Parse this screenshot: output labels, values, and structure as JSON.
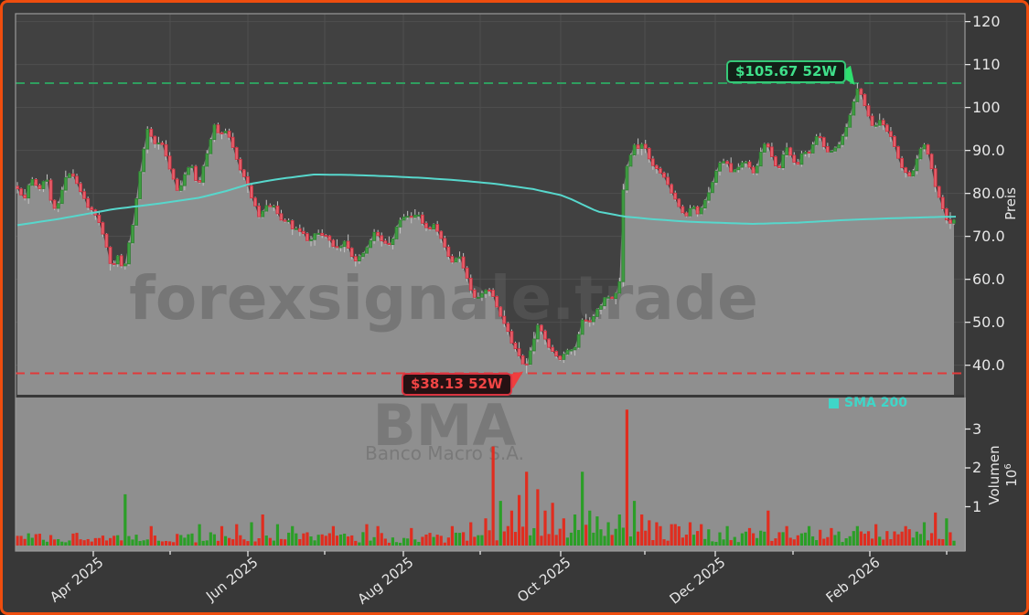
{
  "watermarks": {
    "main": "forexsignale.trade",
    "symbol": "BMA",
    "symbol_sub": "Banco Macro S.A."
  },
  "chart_data": {
    "type": "candlestick",
    "ylabel_price": "Preis",
    "ylabel_volume": "Volumen",
    "volume_scale_base": "10",
    "volume_scale_exp": "6",
    "legend": {
      "sma_label": "SMA 200"
    },
    "annotations": {
      "high": {
        "text": "$105.67 52W",
        "value": 105.67
      },
      "low": {
        "text": "$38.13 52W",
        "value": 38.13
      }
    },
    "price_ticks": {
      "labels": [
        "120",
        "110",
        "100",
        "90.0",
        "80.0",
        "70.0",
        "60.0",
        "50.0",
        "40.0"
      ],
      "values": [
        120,
        110,
        100,
        90,
        80,
        70,
        60,
        50,
        40
      ]
    },
    "volume_ticks": {
      "labels": [
        "3",
        "2",
        "1"
      ],
      "values": [
        3,
        2,
        1
      ]
    },
    "x_ticks": [
      {
        "x": 99,
        "label": "Apr 2025"
      },
      {
        "x": 183,
        "label": ""
      },
      {
        "x": 268,
        "label": "Jun 2025"
      },
      {
        "x": 352,
        "label": ""
      },
      {
        "x": 438,
        "label": "Aug 2025"
      },
      {
        "x": 522,
        "label": ""
      },
      {
        "x": 610,
        "label": "Oct 2025"
      },
      {
        "x": 702,
        "label": ""
      },
      {
        "x": 779,
        "label": "Dec 2025"
      },
      {
        "x": 864,
        "label": ""
      },
      {
        "x": 948,
        "label": "Feb 2026"
      },
      {
        "x": 1032,
        "label": ""
      }
    ],
    "y_range": [
      40,
      120
    ],
    "series": {
      "close_anchors": [
        [
          16,
          81
        ],
        [
          20,
          79.5
        ],
        [
          24,
          79
        ],
        [
          28,
          82
        ],
        [
          33,
          83.5
        ],
        [
          38,
          80.5
        ],
        [
          43,
          82.5
        ],
        [
          48,
          83.5
        ],
        [
          53,
          78
        ],
        [
          58,
          76.5
        ],
        [
          63,
          79
        ],
        [
          70,
          85
        ],
        [
          76,
          84.5
        ],
        [
          82,
          82
        ],
        [
          88,
          79
        ],
        [
          95,
          76.5
        ],
        [
          101,
          75
        ],
        [
          106,
          73
        ],
        [
          110,
          70.5
        ],
        [
          115,
          66
        ],
        [
          119,
          62.5
        ],
        [
          123,
          64
        ],
        [
          127,
          66.5
        ],
        [
          131,
          61.5
        ],
        [
          135,
          64
        ],
        [
          139,
          70
        ],
        [
          143,
          74
        ],
        [
          147,
          80
        ],
        [
          151,
          87
        ],
        [
          155,
          91
        ],
        [
          158,
          95
        ],
        [
          161,
          94
        ],
        [
          165,
          92
        ],
        [
          169,
          91
        ],
        [
          173,
          93
        ],
        [
          177,
          89.5
        ],
        [
          181,
          87
        ],
        [
          186,
          84
        ],
        [
          191,
          80.8
        ],
        [
          196,
          82.5
        ],
        [
          201,
          85.5
        ],
        [
          206,
          87
        ],
        [
          210,
          84
        ],
        [
          214,
          81.5
        ],
        [
          219,
          86
        ],
        [
          224,
          90
        ],
        [
          228,
          93.5
        ],
        [
          232,
          96.3
        ],
        [
          236,
          94
        ],
        [
          241,
          93.8
        ],
        [
          245,
          94.6
        ],
        [
          250,
          91.5
        ],
        [
          255,
          88
        ],
        [
          260,
          85
        ],
        [
          265,
          83.5
        ],
        [
          269,
          81
        ],
        [
          274,
          78
        ],
        [
          280,
          74.5
        ],
        [
          285,
          76.2
        ],
        [
          290,
          77.4
        ],
        [
          296,
          76.8
        ],
        [
          301,
          75.2
        ],
        [
          306,
          73.6
        ],
        [
          311,
          74
        ],
        [
          316,
          71.8
        ],
        [
          321,
          72.2
        ],
        [
          326,
          71
        ],
        [
          331,
          69.8
        ],
        [
          336,
          68.7
        ],
        [
          341,
          70.3
        ],
        [
          346,
          71
        ],
        [
          351,
          70.4
        ],
        [
          356,
          69.3
        ],
        [
          361,
          67.4
        ],
        [
          366,
          67
        ],
        [
          371,
          68.2
        ],
        [
          375,
          68.6
        ],
        [
          379,
          66.8
        ],
        [
          383,
          64.6
        ],
        [
          387,
          64.2
        ],
        [
          391,
          65.6
        ],
        [
          396,
          66.8
        ],
        [
          401,
          69
        ],
        [
          406,
          70.6
        ],
        [
          410,
          70
        ],
        [
          415,
          68.7
        ],
        [
          420,
          67.8
        ],
        [
          425,
          69
        ],
        [
          430,
          71.8
        ],
        [
          435,
          73.6
        ],
        [
          440,
          74.8
        ],
        [
          445,
          74.2
        ],
        [
          450,
          74.6
        ],
        [
          454,
          75.2
        ],
        [
          458,
          73.6
        ],
        [
          463,
          72.4
        ],
        [
          467,
          71.6
        ],
        [
          471,
          72.6
        ],
        [
          475,
          71
        ],
        [
          479,
          69.3
        ],
        [
          483,
          67.5
        ],
        [
          487,
          65.2
        ],
        [
          491,
          64
        ],
        [
          495,
          65
        ],
        [
          499,
          65.8
        ],
        [
          503,
          63.5
        ],
        [
          507,
          60.5
        ],
        [
          511,
          57.8
        ],
        [
          515,
          56.2
        ],
        [
          519,
          55.6
        ],
        [
          523,
          56.8
        ],
        [
          527,
          57.6
        ],
        [
          531,
          58
        ],
        [
          535,
          56.8
        ],
        [
          539,
          54.6
        ],
        [
          543,
          52.4
        ],
        [
          547,
          50.4
        ],
        [
          551,
          48.4
        ],
        [
          555,
          46.2
        ],
        [
          559,
          44.2
        ],
        [
          563,
          43
        ],
        [
          567,
          40.8
        ],
        [
          571,
          39.2
        ],
        [
          574,
          41
        ],
        [
          577,
          43.6
        ],
        [
          580,
          45.8
        ],
        [
          583,
          47.8
        ],
        [
          586,
          50.2
        ],
        [
          589,
          48.2
        ],
        [
          592,
          46.4
        ],
        [
          596,
          44.8
        ],
        [
          600,
          43.4
        ],
        [
          604,
          42.6
        ],
        [
          608,
          41.8
        ],
        [
          612,
          41.6
        ],
        [
          616,
          43.8
        ],
        [
          620,
          43.4
        ],
        [
          624,
          44.2
        ],
        [
          628,
          45
        ],
        [
          632,
          50
        ],
        [
          636,
          50.8
        ],
        [
          640,
          49.4
        ],
        [
          644,
          50.6
        ],
        [
          648,
          52.2
        ],
        [
          652,
          53.4
        ],
        [
          656,
          54.8
        ],
        [
          660,
          56.6
        ],
        [
          664,
          55.8
        ],
        [
          668,
          55.4
        ],
        [
          672,
          57.5
        ],
        [
          675,
          60
        ],
        [
          678,
          80
        ],
        [
          681,
          85
        ],
        [
          684,
          87
        ],
        [
          688,
          89.5
        ],
        [
          691,
          91.5
        ],
        [
          694,
          90.6
        ],
        [
          697,
          90
        ],
        [
          700,
          92.5
        ],
        [
          703,
          90
        ],
        [
          706,
          87.8
        ],
        [
          710,
          87
        ],
        [
          714,
          86
        ],
        [
          718,
          85.2
        ],
        [
          722,
          84.4
        ],
        [
          726,
          82.8
        ],
        [
          730,
          80.8
        ],
        [
          734,
          79.4
        ],
        [
          738,
          77.8
        ],
        [
          742,
          76
        ],
        [
          746,
          74.6
        ],
        [
          750,
          76
        ],
        [
          753,
          77.6
        ],
        [
          756,
          76.4
        ],
        [
          759,
          75
        ],
        [
          762,
          75.6
        ],
        [
          766,
          77.5
        ],
        [
          770,
          79.5
        ],
        [
          774,
          81.8
        ],
        [
          778,
          84
        ],
        [
          782,
          86
        ],
        [
          786,
          87.4
        ],
        [
          790,
          87.8
        ],
        [
          794,
          85.8
        ],
        [
          798,
          85
        ],
        [
          802,
          85.8
        ],
        [
          806,
          86.6
        ],
        [
          810,
          87.8
        ],
        [
          814,
          87
        ],
        [
          818,
          85.4
        ],
        [
          822,
          85
        ],
        [
          826,
          87.6
        ],
        [
          830,
          90
        ],
        [
          834,
          92.6
        ],
        [
          837,
          91
        ],
        [
          841,
          88.4
        ],
        [
          845,
          86.4
        ],
        [
          849,
          86.2
        ],
        [
          853,
          88.6
        ],
        [
          857,
          90.4
        ],
        [
          860,
          89.6
        ],
        [
          864,
          87.6
        ],
        [
          868,
          86.2
        ],
        [
          872,
          88.8
        ],
        [
          876,
          90.2
        ],
        [
          879,
          88.6
        ],
        [
          883,
          90.2
        ],
        [
          887,
          92.4
        ],
        [
          891,
          94
        ],
        [
          895,
          92.2
        ],
        [
          899,
          90.4
        ],
        [
          903,
          89
        ],
        [
          907,
          90
        ],
        [
          911,
          90.8
        ],
        [
          915,
          91.8
        ],
        [
          919,
          93.8
        ],
        [
          923,
          96
        ],
        [
          927,
          99
        ],
        [
          931,
          102
        ],
        [
          934,
          104.2
        ],
        [
          937,
          103.6
        ],
        [
          940,
          102
        ],
        [
          944,
          99.8
        ],
        [
          948,
          97.4
        ],
        [
          952,
          95.2
        ],
        [
          956,
          96.2
        ],
        [
          960,
          97
        ],
        [
          964,
          96
        ],
        [
          968,
          94.2
        ],
        [
          972,
          92.4
        ],
        [
          976,
          90
        ],
        [
          980,
          87.4
        ],
        [
          984,
          85.6
        ],
        [
          988,
          84.4
        ],
        [
          992,
          83.6
        ],
        [
          996,
          86
        ],
        [
          1000,
          88.6
        ],
        [
          1004,
          90.4
        ],
        [
          1007,
          91.4
        ],
        [
          1011,
          89.8
        ],
        [
          1015,
          86.5
        ],
        [
          1019,
          82.5
        ],
        [
          1023,
          79.5
        ],
        [
          1027,
          76.5
        ],
        [
          1031,
          74.5
        ],
        [
          1035,
          73.2
        ],
        [
          1040,
          73.6
        ]
      ],
      "sma200_anchors": [
        [
          16,
          72.6
        ],
        [
          60,
          74
        ],
        [
          120,
          76.3
        ],
        [
          170,
          77.6
        ],
        [
          215,
          79
        ],
        [
          245,
          80.6
        ],
        [
          270,
          82.2
        ],
        [
          300,
          83.3
        ],
        [
          340,
          84.4
        ],
        [
          380,
          84.3
        ],
        [
          420,
          84.0
        ],
        [
          460,
          83.6
        ],
        [
          500,
          83.0
        ],
        [
          540,
          82.2
        ],
        [
          580,
          81.0
        ],
        [
          610,
          79.6
        ],
        [
          620,
          78.8
        ],
        [
          650,
          75.8
        ],
        [
          680,
          74.6
        ],
        [
          710,
          74.0
        ],
        [
          750,
          73.4
        ],
        [
          820,
          72.9
        ],
        [
          870,
          73.2
        ],
        [
          920,
          73.8
        ],
        [
          970,
          74.2
        ],
        [
          1020,
          74.5
        ],
        [
          1045,
          74.6
        ]
      ],
      "volume_spikes_millions": [
        [
          29,
          1.32,
          "g"
        ],
        [
          36,
          0.5,
          "r"
        ],
        [
          49,
          0.55,
          "g"
        ],
        [
          55,
          0.5,
          "r"
        ],
        [
          59,
          0.55,
          "r"
        ],
        [
          63,
          0.6,
          "g"
        ],
        [
          66,
          0.8,
          "r"
        ],
        [
          70,
          0.55,
          "g"
        ],
        [
          74,
          0.5,
          "g"
        ],
        [
          85,
          0.5,
          "r"
        ],
        [
          94,
          0.55,
          "r"
        ],
        [
          97,
          0.5,
          "r"
        ],
        [
          106,
          0.45,
          "r"
        ],
        [
          117,
          0.5,
          "r"
        ],
        [
          122,
          0.6,
          "r"
        ],
        [
          126,
          0.7,
          "r"
        ],
        [
          128,
          2.55,
          "r"
        ],
        [
          130,
          1.15,
          "g"
        ],
        [
          133,
          0.9,
          "r"
        ],
        [
          135,
          1.3,
          "r"
        ],
        [
          137,
          1.9,
          "r"
        ],
        [
          140,
          1.45,
          "r"
        ],
        [
          142,
          0.9,
          "r"
        ],
        [
          144,
          1.1,
          "r"
        ],
        [
          147,
          0.7,
          "r"
        ],
        [
          150,
          0.8,
          "g"
        ],
        [
          152,
          1.9,
          "g"
        ],
        [
          154,
          0.9,
          "g"
        ],
        [
          156,
          0.75,
          "g"
        ],
        [
          159,
          0.6,
          "g"
        ],
        [
          162,
          0.8,
          "g"
        ],
        [
          164,
          3.5,
          "r"
        ],
        [
          166,
          1.15,
          "g"
        ],
        [
          168,
          0.8,
          "r"
        ],
        [
          170,
          0.65,
          "r"
        ],
        [
          172,
          0.6,
          "r"
        ],
        [
          176,
          0.55,
          "r"
        ],
        [
          181,
          0.6,
          "r"
        ],
        [
          184,
          0.55,
          "r"
        ],
        [
          191,
          0.5,
          "g"
        ],
        [
          197,
          0.45,
          "r"
        ],
        [
          202,
          0.9,
          "r"
        ],
        [
          207,
          0.5,
          "r"
        ],
        [
          213,
          0.5,
          "g"
        ],
        [
          219,
          0.45,
          "r"
        ],
        [
          226,
          0.5,
          "g"
        ],
        [
          231,
          0.55,
          "r"
        ],
        [
          239,
          0.5,
          "r"
        ],
        [
          244,
          0.6,
          "g"
        ],
        [
          247,
          0.85,
          "r"
        ],
        [
          250,
          0.7,
          "g"
        ]
      ]
    },
    "colors": {
      "up": "#3f9e42",
      "up_edge": "#2f7d32",
      "down": "#e5606b",
      "down_edge": "#cf2f3f",
      "wick": "#c4c4c4",
      "volume_up": "#2b9e27",
      "volume_down": "#e02d1f",
      "sma200": "#57d7cc",
      "area_fill": "#8f8f8f",
      "high_line": "#2f9e5f",
      "low_line": "#e23a3a",
      "high_text": "#3fe08a",
      "low_text": "#f24545",
      "grid": "#4f4f4f",
      "plot_bg": "#414141",
      "outer_bg": "#383838",
      "panel_gray": "#8f8f8f",
      "spine": "#9a9a9a",
      "tick_text": "#e6e6e6",
      "border": "#ee4d0e",
      "watermark": "#5f5f5f"
    }
  }
}
